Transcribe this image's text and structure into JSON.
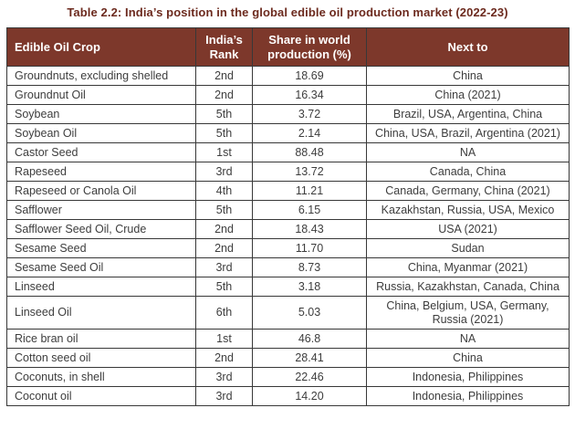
{
  "title": "Table 2.2: India’s position in the global edible oil production market (2022-23)",
  "table": {
    "columns": [
      "Edible Oil Crop",
      "India’s Rank",
      "Share in world production (%)",
      "Next to"
    ],
    "rows": [
      {
        "crop": "Groundnuts, excluding shelled",
        "rank": "2nd",
        "share": "18.69",
        "next_to": "China"
      },
      {
        "crop": "Groundnut Oil",
        "rank": "2nd",
        "share": "16.34",
        "next_to": "China (2021)"
      },
      {
        "crop": "Soybean",
        "rank": "5th",
        "share": "3.72",
        "next_to": "Brazil, USA, Argentina, China"
      },
      {
        "crop": "Soybean Oil",
        "rank": "5th",
        "share": "2.14",
        "next_to": "China, USA, Brazil, Argentina (2021)"
      },
      {
        "crop": "Castor Seed",
        "rank": "1st",
        "share": "88.48",
        "next_to": "NA"
      },
      {
        "crop": "Rapeseed",
        "rank": "3rd",
        "share": "13.72",
        "next_to": "Canada, China"
      },
      {
        "crop": "Rapeseed or Canola Oil",
        "rank": "4th",
        "share": "11.21",
        "next_to": "Canada, Germany, China (2021)"
      },
      {
        "crop": "Safflower",
        "rank": "5th",
        "share": "6.15",
        "next_to": "Kazakhstan, Russia, USA, Mexico"
      },
      {
        "crop": "Safflower Seed Oil, Crude",
        "rank": "2nd",
        "share": "18.43",
        "next_to": "USA (2021)"
      },
      {
        "crop": "Sesame Seed",
        "rank": "2nd",
        "share": "11.70",
        "next_to": "Sudan"
      },
      {
        "crop": "Sesame Seed Oil",
        "rank": "3rd",
        "share": "8.73",
        "next_to": "China, Myanmar (2021)"
      },
      {
        "crop": "Linseed",
        "rank": "5th",
        "share": "3.18",
        "next_to": "Russia, Kazakhstan, Canada, China"
      },
      {
        "crop": "Linseed Oil",
        "rank": "6th",
        "share": "5.03",
        "next_to": "China, Belgium, USA, Germany, Russia (2021)"
      },
      {
        "crop": "Rice bran oil",
        "rank": "1st",
        "share": "46.8",
        "next_to": "NA"
      },
      {
        "crop": "Cotton seed oil",
        "rank": "2nd",
        "share": "28.41",
        "next_to": "China"
      },
      {
        "crop": "Coconuts, in shell",
        "rank": "3rd",
        "share": "22.46",
        "next_to": "Indonesia, Philippines"
      },
      {
        "crop": "Coconut oil",
        "rank": "3rd",
        "share": "14.20",
        "next_to": "Indonesia, Philippines"
      }
    ]
  },
  "colors": {
    "header_bg": "#7d382b",
    "header_text": "#ffffff",
    "title_text": "#6c2a1e",
    "body_text": "#3d3d3d",
    "border": "#383838"
  }
}
